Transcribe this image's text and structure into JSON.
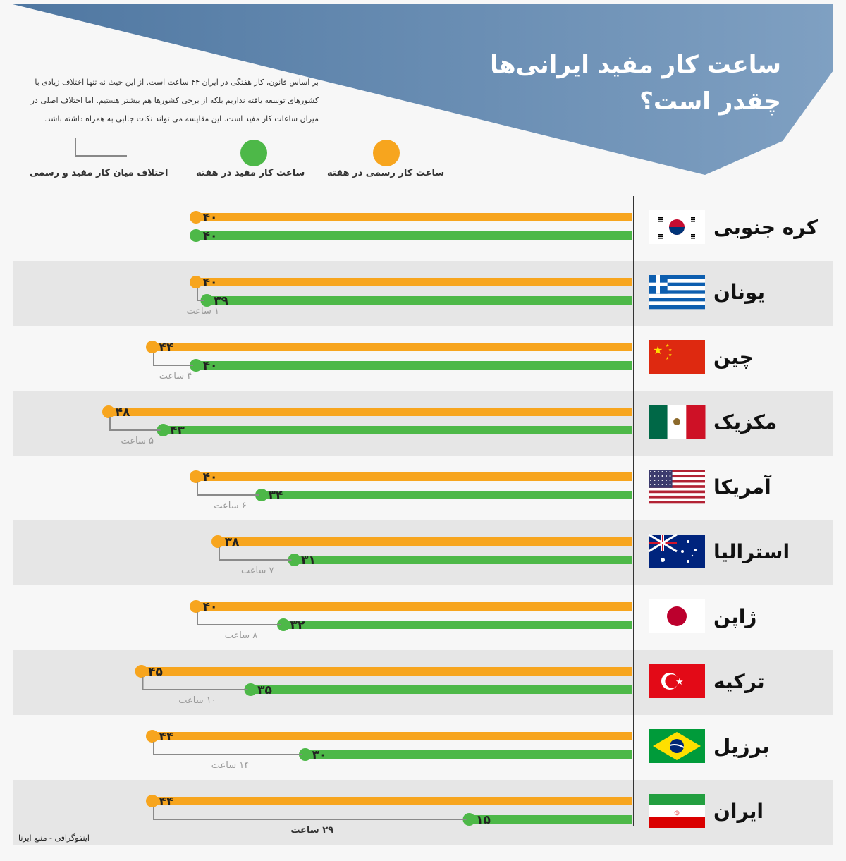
{
  "title_line1": "ساعت کار مفید ایرانی‌ها",
  "title_line2": "چقدر است؟",
  "intro": "بر اساس قانون، کار هفتگی در ایران ۴۴ ساعت است. از این حیث نه تنها اختلاف زیادی با کشورهای توسعه یافته نداریم بلکه از برخی کشورها هم بیشتر هستیم. اما اختلاف اصلی در میزان ساعات کار مفید است. این مقایسه می تواند نکات جالبی به همراه داشته باشد.",
  "legend": {
    "official": "ساعت کار رسمی در هفته",
    "useful": "ساعت کار مفید در هفته",
    "difference": "اختلاف میان کار مفید و رسمی"
  },
  "colors": {
    "official": "#F7A51E",
    "useful": "#4DB848",
    "header": "#5A80A8",
    "diff_text": "#9a9a9a"
  },
  "footer": "اینفوگرافی - منبع ایرنا",
  "chart_data": {
    "type": "bar",
    "orientation": "horizontal",
    "categories": [
      "کره جنوبی",
      "یونان",
      "چین",
      "مکزیک",
      "آمریکا",
      "استرالیا",
      "ژاپن",
      "ترکیه",
      "برزیل",
      "ایران"
    ],
    "flags": [
      "south-korea-flag",
      "greece-flag",
      "china-flag",
      "mexico-flag",
      "usa-flag",
      "australia-flag",
      "japan-flag",
      "turkey-flag",
      "brazil-flag",
      "iran-flag"
    ],
    "series": [
      {
        "name": "ساعت کار رسمی در هفته",
        "values": [
          40,
          40,
          44,
          48,
          40,
          38,
          40,
          45,
          44,
          44
        ],
        "labels": [
          "۴۰",
          "۴۰",
          "۴۴",
          "۴۸",
          "۴۰",
          "۳۸",
          "۴۰",
          "۴۵",
          "۴۴",
          "۴۴"
        ]
      },
      {
        "name": "ساعت کار مفید در هفته",
        "values": [
          40,
          39,
          40,
          43,
          34,
          31,
          32,
          35,
          30,
          15
        ],
        "labels": [
          "۴۰",
          "۳۹",
          "۴۰",
          "۴۳",
          "۳۴",
          "۳۱",
          "۳۲",
          "۳۵",
          "۳۰",
          "۱۵"
        ]
      }
    ],
    "differences": [
      "",
      "۱ ساعت",
      "۴ ساعت",
      "۵ ساعت",
      "۶ ساعت",
      "۷ ساعت",
      "۸ ساعت",
      "۱۰ ساعت",
      "۱۴ ساعت",
      "۲۹ ساعت"
    ],
    "bar_direction": "right-to-left"
  }
}
